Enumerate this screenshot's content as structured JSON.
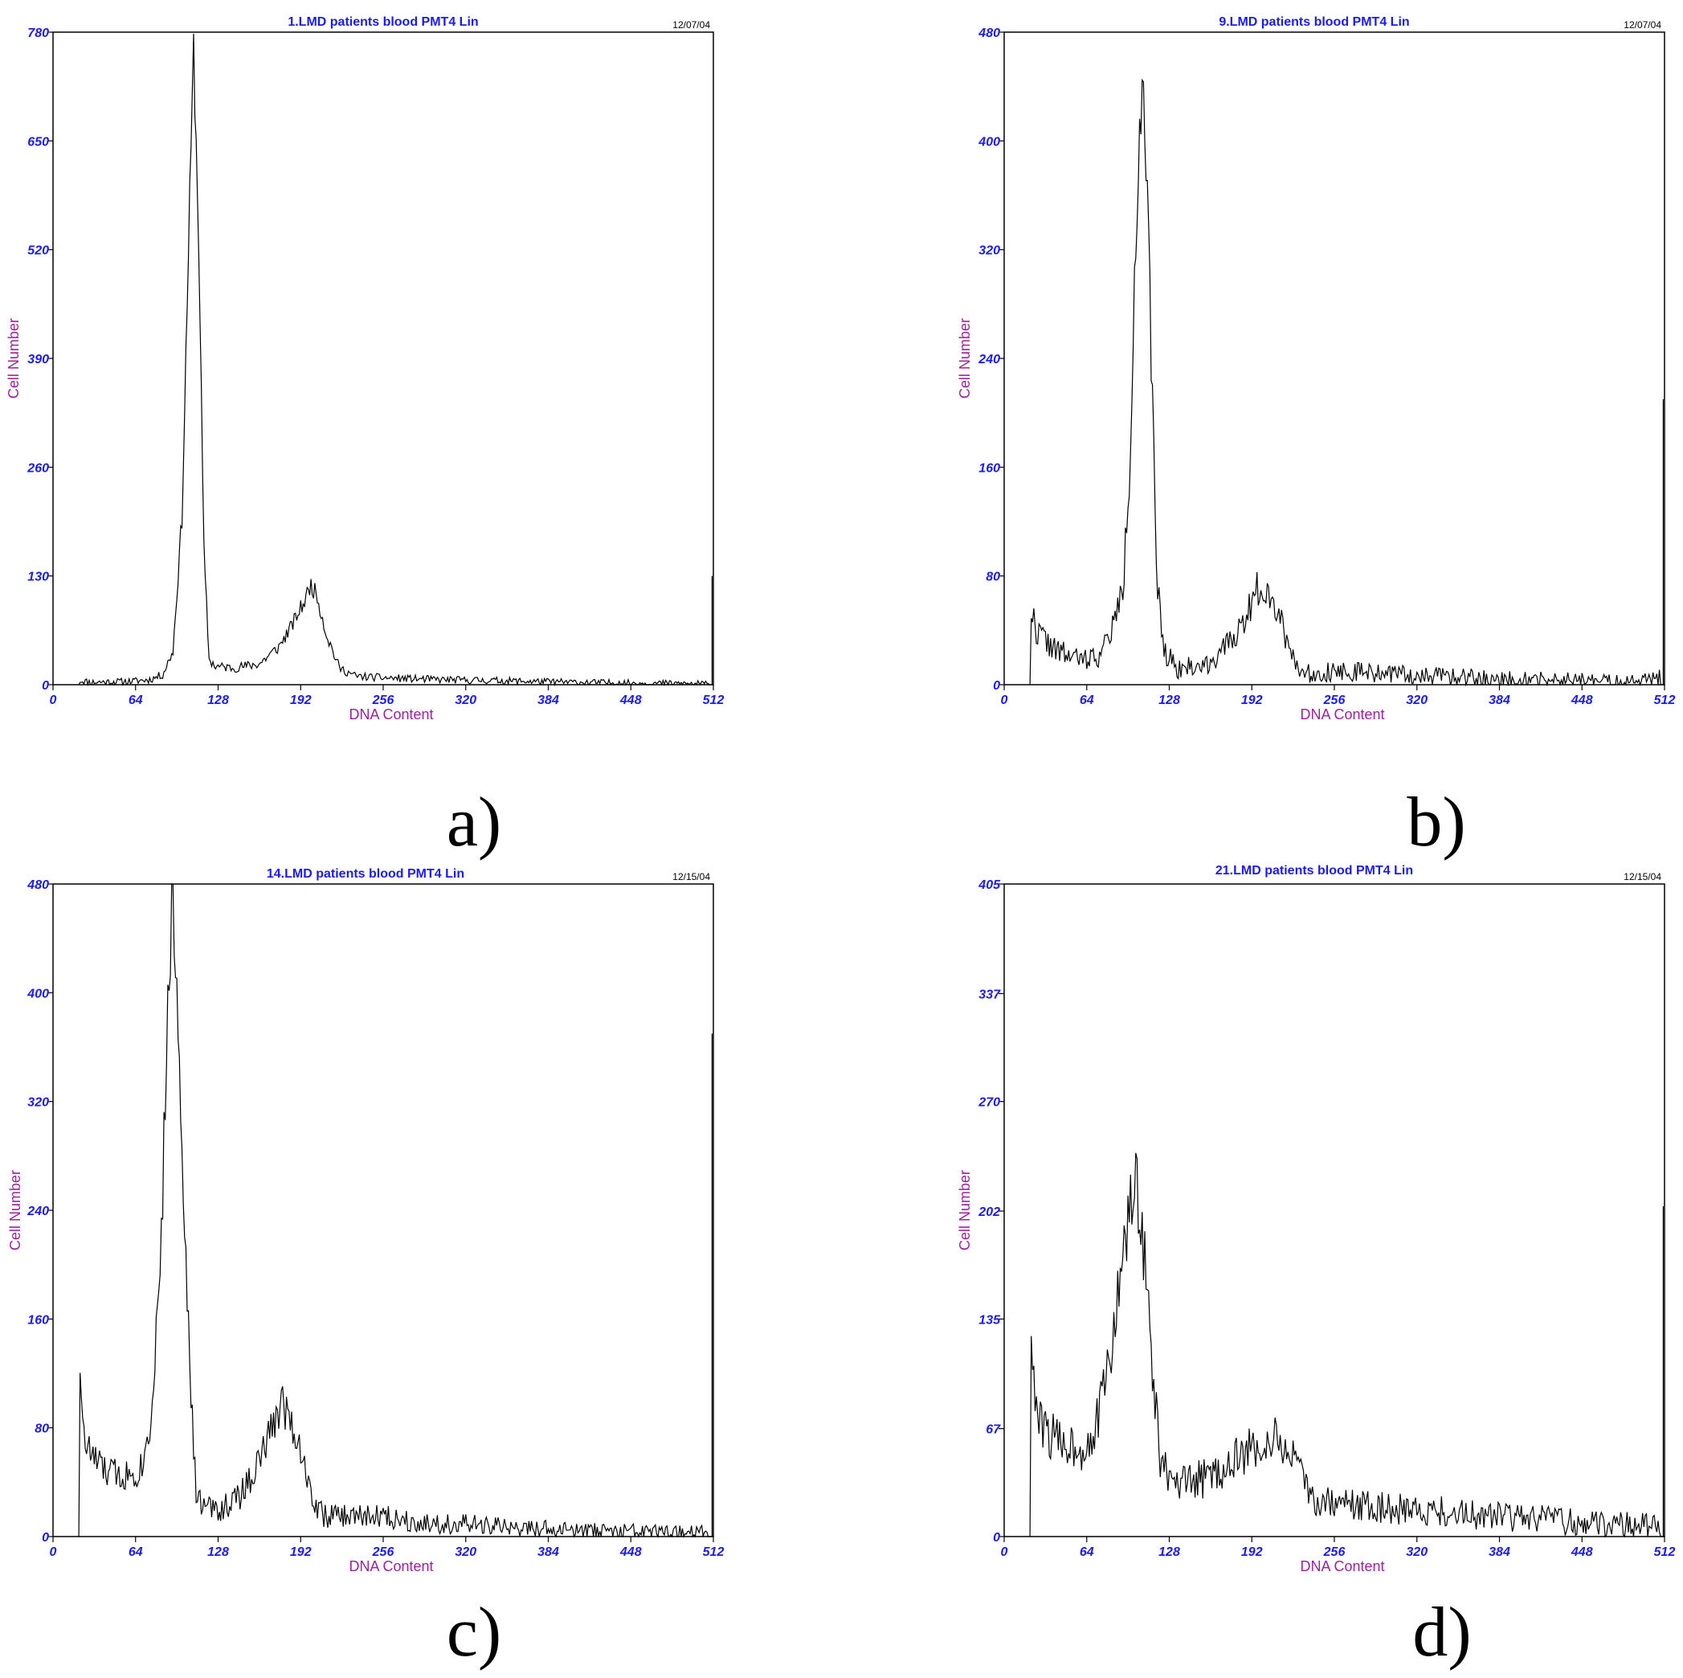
{
  "colors": {
    "title": "#1a1aff",
    "tick": "#1a1aff",
    "axis_label": "#a020a0",
    "trace": "#000000"
  },
  "chart_data": [
    {
      "type": "area",
      "panel_label": "a)",
      "title": "1.LMD patients blood PMT4 Lin",
      "date": "12/07/04",
      "xlabel": "DNA Content",
      "ylabel": "Cell Number",
      "xlim": [
        0,
        512
      ],
      "ylim": [
        0,
        780
      ],
      "xticks": [
        "0",
        "64",
        "128",
        "192",
        "256",
        "320",
        "384",
        "448",
        "512"
      ],
      "yticks": [
        "0",
        "130",
        "260",
        "390",
        "520",
        "650",
        "780"
      ],
      "profile": [
        [
          20,
          0
        ],
        [
          21,
          5
        ],
        [
          30,
          3
        ],
        [
          60,
          4
        ],
        [
          75,
          6
        ],
        [
          85,
          12
        ],
        [
          93,
          40
        ],
        [
          100,
          200
        ],
        [
          105,
          520
        ],
        [
          109,
          760
        ],
        [
          113,
          530
        ],
        [
          117,
          160
        ],
        [
          121,
          30
        ],
        [
          126,
          22
        ],
        [
          140,
          20
        ],
        [
          160,
          25
        ],
        [
          175,
          45
        ],
        [
          185,
          70
        ],
        [
          195,
          100
        ],
        [
          200,
          120
        ],
        [
          205,
          105
        ],
        [
          212,
          60
        ],
        [
          222,
          20
        ],
        [
          235,
          10
        ],
        [
          260,
          8
        ],
        [
          300,
          6
        ],
        [
          340,
          5
        ],
        [
          400,
          3
        ],
        [
          450,
          2
        ],
        [
          505,
          1
        ],
        [
          509,
          0
        ],
        [
          510,
          55
        ],
        [
          511,
          130
        ]
      ],
      "noise": 6,
      "seed": 11
    },
    {
      "type": "area",
      "panel_label": "b)",
      "title": "9.LMD patients blood PMT4 Lin",
      "date": "12/07/04",
      "xlabel": "DNA Content",
      "ylabel": "Cell Number",
      "xlim": [
        0,
        512
      ],
      "ylim": [
        0,
        480
      ],
      "xticks": [
        "0",
        "64",
        "128",
        "192",
        "256",
        "320",
        "384",
        "448",
        "512"
      ],
      "yticks": [
        "0",
        "80",
        "160",
        "240",
        "320",
        "400",
        "480"
      ],
      "profile": [
        [
          20,
          0
        ],
        [
          21,
          55
        ],
        [
          25,
          40
        ],
        [
          40,
          25
        ],
        [
          60,
          18
        ],
        [
          75,
          22
        ],
        [
          85,
          45
        ],
        [
          92,
          70
        ],
        [
          97,
          150
        ],
        [
          101,
          300
        ],
        [
          105,
          410
        ],
        [
          108,
          425
        ],
        [
          112,
          320
        ],
        [
          115,
          200
        ],
        [
          119,
          70
        ],
        [
          124,
          25
        ],
        [
          135,
          12
        ],
        [
          155,
          14
        ],
        [
          170,
          25
        ],
        [
          185,
          45
        ],
        [
          196,
          70
        ],
        [
          204,
          72
        ],
        [
          212,
          55
        ],
        [
          222,
          25
        ],
        [
          232,
          8
        ],
        [
          260,
          10
        ],
        [
          300,
          8
        ],
        [
          340,
          6
        ],
        [
          380,
          4
        ],
        [
          430,
          3
        ],
        [
          490,
          2
        ],
        [
          508,
          5
        ],
        [
          509,
          0
        ],
        [
          510,
          80
        ],
        [
          511,
          210
        ]
      ],
      "noise": 9,
      "seed": 22
    },
    {
      "type": "area",
      "panel_label": "c)",
      "title": "14.LMD patients blood PMT4 Lin",
      "date": "12/15/04",
      "xlabel": "DNA Content",
      "ylabel": "Cell Number",
      "xlim": [
        0,
        512
      ],
      "ylim": [
        0,
        480
      ],
      "xticks": [
        "0",
        "64",
        "128",
        "192",
        "256",
        "320",
        "384",
        "448",
        "512"
      ],
      "yticks": [
        "0",
        "80",
        "160",
        "240",
        "320",
        "400",
        "480"
      ],
      "profile": [
        [
          20,
          0
        ],
        [
          21,
          130
        ],
        [
          24,
          70
        ],
        [
          30,
          60
        ],
        [
          40,
          48
        ],
        [
          55,
          45
        ],
        [
          68,
          50
        ],
        [
          75,
          80
        ],
        [
          80,
          150
        ],
        [
          85,
          250
        ],
        [
          89,
          390
        ],
        [
          92,
          470
        ],
        [
          95,
          430
        ],
        [
          100,
          300
        ],
        [
          106,
          120
        ],
        [
          111,
          30
        ],
        [
          117,
          22
        ],
        [
          130,
          20
        ],
        [
          145,
          30
        ],
        [
          160,
          55
        ],
        [
          170,
          80
        ],
        [
          177,
          100
        ],
        [
          183,
          90
        ],
        [
          192,
          65
        ],
        [
          200,
          30
        ],
        [
          210,
          15
        ],
        [
          230,
          15
        ],
        [
          255,
          15
        ],
        [
          290,
          10
        ],
        [
          330,
          8
        ],
        [
          380,
          5
        ],
        [
          430,
          3
        ],
        [
          480,
          2
        ],
        [
          507,
          3
        ],
        [
          509,
          0
        ],
        [
          510,
          200
        ],
        [
          511,
          370
        ]
      ],
      "noise": 10,
      "seed": 33
    },
    {
      "type": "area",
      "panel_label": "d)",
      "title": "21.LMD patients blood PMT4 Lin",
      "date": "12/15/04",
      "xlabel": "DNA Content",
      "ylabel": "Cell Number",
      "xlim": [
        0,
        512
      ],
      "ylim": [
        0,
        405
      ],
      "xticks": [
        "0",
        "64",
        "128",
        "192",
        "256",
        "320",
        "384",
        "448",
        "512"
      ],
      "yticks": [
        "0",
        "67",
        "135",
        "202",
        "270",
        "337",
        "405"
      ],
      "profile": [
        [
          20,
          0
        ],
        [
          21,
          135
        ],
        [
          23,
          90
        ],
        [
          27,
          70
        ],
        [
          40,
          60
        ],
        [
          62,
          55
        ],
        [
          72,
          70
        ],
        [
          82,
          110
        ],
        [
          90,
          160
        ],
        [
          96,
          195
        ],
        [
          101,
          215
        ],
        [
          106,
          205
        ],
        [
          111,
          150
        ],
        [
          116,
          90
        ],
        [
          121,
          50
        ],
        [
          130,
          30
        ],
        [
          145,
          33
        ],
        [
          165,
          40
        ],
        [
          180,
          48
        ],
        [
          195,
          55
        ],
        [
          207,
          60
        ],
        [
          220,
          55
        ],
        [
          228,
          40
        ],
        [
          240,
          22
        ],
        [
          270,
          20
        ],
        [
          310,
          17
        ],
        [
          360,
          14
        ],
        [
          410,
          11
        ],
        [
          460,
          8
        ],
        [
          505,
          6
        ],
        [
          509,
          0
        ],
        [
          510,
          90
        ],
        [
          511,
          205
        ]
      ],
      "noise": 11,
      "seed": 44
    }
  ]
}
